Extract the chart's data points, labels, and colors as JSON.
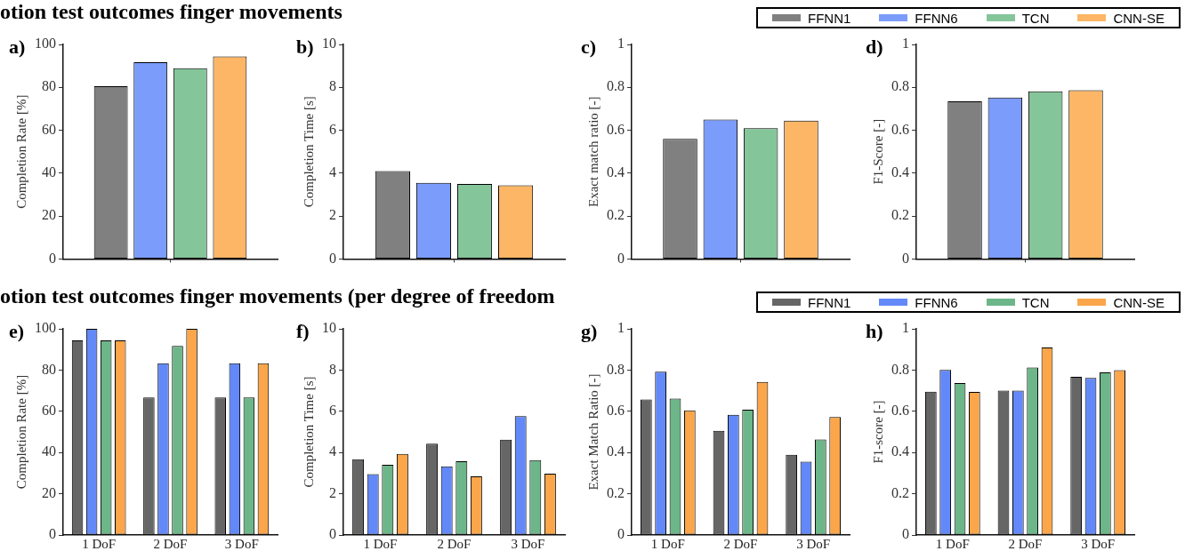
{
  "chart_data": [
    {
      "type": "bar",
      "title": "otion test outcomes finger movements",
      "annotations": [
        "a)"
      ],
      "ylabel": "Completion Rate [%]",
      "categories": [
        null
      ],
      "tick_labels": "y",
      "ylim": [
        0,
        100
      ],
      "yticks": [
        0,
        20,
        40,
        60,
        80,
        100
      ],
      "series": [
        {
          "color": "#808080",
          "values": [
            80.5
          ]
        },
        {
          "color": "#7b9cfb",
          "values": [
            91.7
          ]
        },
        {
          "color": "#85c59a",
          "values": [
            88.9
          ]
        },
        {
          "color": "#fcb665",
          "values": [
            94.4
          ]
        }
      ]
    },
    {
      "type": "bar",
      "annotations": [
        "b)"
      ],
      "ylabel": "Completion Time [s]",
      "categories": [
        null
      ],
      "tick_labels": "y",
      "ylim": [
        0,
        10
      ],
      "yticks": [
        0,
        2,
        4,
        6,
        8,
        10
      ],
      "series": [
        {
          "color": "#808080",
          "values": [
            4.1
          ]
        },
        {
          "color": "#7b9cfb",
          "values": [
            3.55
          ]
        },
        {
          "color": "#85c59a",
          "values": [
            3.5
          ]
        },
        {
          "color": "#fcb665",
          "values": [
            3.43
          ]
        }
      ]
    },
    {
      "type": "bar",
      "annotations": [
        "c)"
      ],
      "ylabel": "Exact match ratio [-]",
      "categories": [
        null
      ],
      "tick_labels": "y",
      "ylim": [
        0,
        1
      ],
      "yticks": [
        0,
        0.2,
        0.4,
        0.6,
        0.8,
        1
      ],
      "series": [
        {
          "color": "#808080",
          "values": [
            0.56
          ]
        },
        {
          "color": "#7b9cfb",
          "values": [
            0.65
          ]
        },
        {
          "color": "#85c59a",
          "values": [
            0.61
          ]
        },
        {
          "color": "#fcb665",
          "values": [
            0.645
          ]
        }
      ]
    },
    {
      "type": "bar",
      "annotations": [
        "d)"
      ],
      "ylabel": "F1-Score [-]",
      "categories": [
        null
      ],
      "tick_labels": "y",
      "legend": "top",
      "ylim": [
        0,
        1
      ],
      "yticks": [
        0,
        0.2,
        0.4,
        0.6,
        0.8,
        1
      ],
      "series": [
        {
          "name": "FFNN1",
          "color": "#808080",
          "values": [
            0.735
          ]
        },
        {
          "name": "FFNN6",
          "color": "#7b9cfb",
          "values": [
            0.752
          ]
        },
        {
          "name": "TCN",
          "color": "#85c59a",
          "values": [
            0.782
          ]
        },
        {
          "name": "CNN-SE",
          "color": "#fcb665",
          "values": [
            0.787
          ]
        }
      ]
    },
    {
      "type": "bar",
      "title": "otion test outcomes finger movements (per degree of freedom",
      "annotations": [
        "e)"
      ],
      "ylabel": "Completion Rate [%]",
      "categories": [
        "1 DoF",
        "2 DoF",
        "3 DoF"
      ],
      "ylim": [
        0,
        100
      ],
      "yticks": [
        0,
        20,
        40,
        60,
        80,
        100
      ],
      "series": [
        {
          "color": "#666666",
          "values": [
            94.4,
            66.7,
            66.7
          ]
        },
        {
          "color": "#6389f9",
          "values": [
            100,
            83.3,
            83.3
          ]
        },
        {
          "color": "#6db689",
          "values": [
            94.4,
            91.7,
            66.7
          ]
        },
        {
          "color": "#fba64a",
          "values": [
            94.4,
            100,
            83.3
          ]
        }
      ]
    },
    {
      "type": "bar",
      "annotations": [
        "f)"
      ],
      "ylabel": "Completion Time [s]",
      "categories": [
        "1 DoF",
        "2 DoF",
        "3 DoF"
      ],
      "ylim": [
        0,
        10
      ],
      "yticks": [
        0,
        2,
        4,
        6,
        8,
        10
      ],
      "series": [
        {
          "color": "#666666",
          "values": [
            3.67,
            4.43,
            4.62
          ]
        },
        {
          "color": "#6389f9",
          "values": [
            2.95,
            3.33,
            5.77
          ]
        },
        {
          "color": "#6db689",
          "values": [
            3.4,
            3.58,
            3.63
          ]
        },
        {
          "color": "#fba64a",
          "values": [
            3.93,
            2.85,
            2.97
          ]
        }
      ]
    },
    {
      "type": "bar",
      "annotations": [
        "g)"
      ],
      "ylabel": "Exact Match Ratio [-]",
      "categories": [
        "1 DoF",
        "2 DoF",
        "3 DoF"
      ],
      "ylim": [
        0,
        1
      ],
      "yticks": [
        0,
        0.2,
        0.4,
        0.6,
        0.8,
        1
      ],
      "series": [
        {
          "color": "#666666",
          "values": [
            0.657,
            0.505,
            0.389
          ]
        },
        {
          "color": "#6389f9",
          "values": [
            0.792,
            0.583,
            0.356
          ]
        },
        {
          "color": "#6db689",
          "values": [
            0.662,
            0.608,
            0.463
          ]
        },
        {
          "color": "#fba64a",
          "values": [
            0.604,
            0.742,
            0.572
          ]
        }
      ]
    },
    {
      "type": "bar",
      "annotations": [
        "h)"
      ],
      "ylabel": "F1-score [-]",
      "categories": [
        "1 DoF",
        "2 DoF",
        "3 DoF"
      ],
      "legend": "top",
      "ylim": [
        0,
        1
      ],
      "yticks": [
        0,
        0.2,
        0.4,
        0.6,
        0.8,
        1
      ],
      "series": [
        {
          "name": "FFNN1",
          "color": "#666666",
          "values": [
            0.695,
            0.7,
            0.767
          ]
        },
        {
          "name": "FFNN6",
          "color": "#6389f9",
          "values": [
            0.801,
            0.7,
            0.762
          ]
        },
        {
          "name": "TCN",
          "color": "#6db689",
          "values": [
            0.737,
            0.813,
            0.789
          ]
        },
        {
          "name": "CNN-SE",
          "color": "#fba64a",
          "values": [
            0.694,
            0.91,
            0.8
          ]
        }
      ]
    }
  ]
}
